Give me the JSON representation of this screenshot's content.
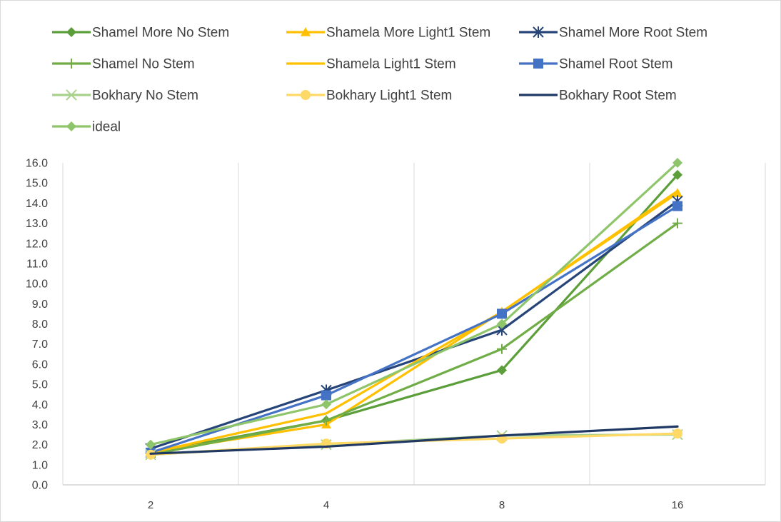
{
  "chart_data": {
    "type": "line",
    "title": "",
    "xlabel": "",
    "ylabel": "",
    "categories": [
      "2",
      "4",
      "8",
      "16"
    ],
    "ylim": [
      0,
      16
    ],
    "y_ticks": [
      "0.0",
      "1.0",
      "2.0",
      "3.0",
      "4.0",
      "5.0",
      "6.0",
      "7.0",
      "8.0",
      "9.0",
      "10.0",
      "11.0",
      "12.0",
      "13.0",
      "14.0",
      "15.0",
      "16.0"
    ],
    "grid": "vertical",
    "legend_position": "top",
    "series": [
      {
        "name": "Shamel More No Stem",
        "values": [
          1.6,
          3.2,
          5.7,
          15.4
        ],
        "color": "#5b9e3a",
        "marker": "diamond"
      },
      {
        "name": "Shamela More Light1 Stem",
        "values": [
          1.6,
          3.0,
          8.6,
          14.5
        ],
        "color": "#ffc000",
        "marker": "triangle"
      },
      {
        "name": "Shamel More Root Stem",
        "values": [
          1.8,
          4.7,
          7.7,
          14.1
        ],
        "color": "#264478",
        "marker": "star"
      },
      {
        "name": "Shamel No Stem",
        "values": [
          1.5,
          3.2,
          6.75,
          13.0
        ],
        "color": "#70ad47",
        "marker": "plus"
      },
      {
        "name": "Shamela Light1 Stem",
        "values": [
          1.6,
          3.55,
          8.6,
          14.6
        ],
        "color": "#ffc000",
        "marker": "none"
      },
      {
        "name": "Shamel Root Stem",
        "values": [
          1.6,
          4.45,
          8.5,
          13.85
        ],
        "color": "#4472c4",
        "marker": "square"
      },
      {
        "name": "Bokhary No Stem",
        "values": [
          1.5,
          2.0,
          2.45,
          2.5
        ],
        "color": "#a9d18e",
        "marker": "x"
      },
      {
        "name": "Bokhary Light1 Stem",
        "values": [
          1.5,
          2.05,
          2.3,
          2.55
        ],
        "color": "#ffd966",
        "marker": "circle"
      },
      {
        "name": "Bokhary Root Stem",
        "values": [
          1.55,
          1.9,
          2.45,
          2.9
        ],
        "color": "#1f3864",
        "marker": "none"
      },
      {
        "name": "ideal",
        "values": [
          2.0,
          4.0,
          8.0,
          16.0
        ],
        "color": "#8fc56a",
        "marker": "diamond"
      }
    ]
  }
}
